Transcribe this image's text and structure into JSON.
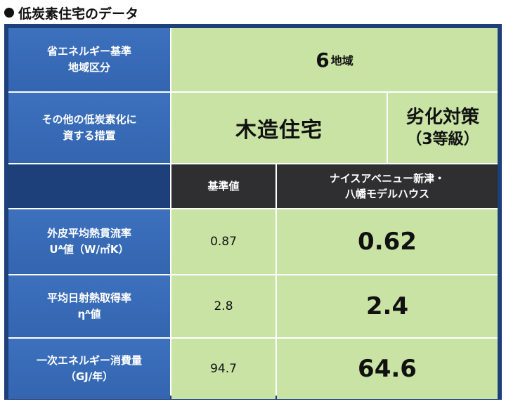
{
  "title": "低炭素住宅のデータ",
  "rows": {
    "region_label_1": "省エネルギー基準",
    "region_label_2": "地域区分",
    "region_value": "6",
    "region_unit": "地域",
    "other_label_1": "その他の低炭素化に",
    "other_label_2": "資する措置",
    "measure_1": "木造住宅",
    "measure_2": "劣化対策",
    "measure_2_sub": "（3等級）",
    "col_standard": "基準値",
    "col_model_1": "ナイスアベニュー新津・",
    "col_model_2": "八幡モデルハウス",
    "ua_label_1": "外皮平均熱貫流率",
    "ua_label_2": "Uᴬ値（W/㎡K）",
    "ua_standard": "0.87",
    "ua_model": "0.62",
    "eta_label_1": "平均日射熱取得率",
    "eta_label_2": "ηᴬ値",
    "eta_standard": "2.8",
    "eta_model": "2.4",
    "energy_label_1": "一次エネルギー消費量",
    "energy_label_2": "（GJ/年）",
    "energy_standard": "94.7",
    "energy_model": "64.6"
  }
}
